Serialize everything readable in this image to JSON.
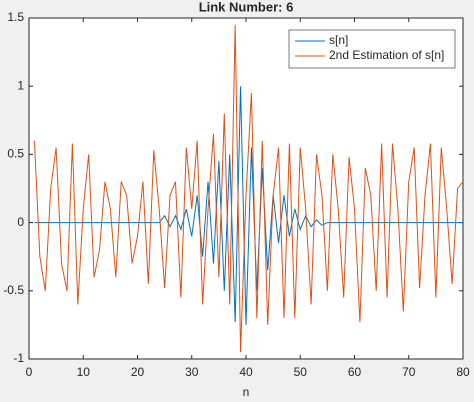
{
  "chart_data": {
    "type": "line",
    "title": "Link Number: 6",
    "xlabel": "n",
    "x": [
      1,
      2,
      3,
      4,
      5,
      6,
      7,
      8,
      9,
      10,
      11,
      12,
      13,
      14,
      15,
      16,
      17,
      18,
      19,
      20,
      21,
      22,
      23,
      24,
      25,
      26,
      27,
      28,
      29,
      30,
      31,
      32,
      33,
      34,
      35,
      36,
      37,
      38,
      39,
      40,
      41,
      42,
      43,
      44,
      45,
      46,
      47,
      48,
      49,
      50,
      51,
      52,
      53,
      54,
      55,
      56,
      57,
      58,
      59,
      60,
      61,
      62,
      63,
      64,
      65,
      66,
      67,
      68,
      69,
      70,
      71,
      72,
      73,
      74,
      75,
      76,
      77,
      78,
      79,
      80
    ],
    "series": [
      {
        "name": "s[n]",
        "color": "#0072bd",
        "values": [
          0,
          0,
          0,
          0,
          0,
          0,
          0,
          0,
          0,
          0,
          0,
          0,
          0,
          0,
          0,
          0,
          0,
          0,
          0,
          0,
          0,
          0,
          0,
          0,
          0.05,
          -0.03,
          0.05,
          -0.05,
          0.1,
          -0.1,
          0.2,
          -0.25,
          0.3,
          -0.3,
          0.45,
          -0.5,
          0.5,
          -0.73,
          1.0,
          -0.75,
          0.55,
          -0.5,
          0.4,
          -0.35,
          0.2,
          -0.15,
          0.2,
          -0.1,
          0.1,
          -0.05,
          0.05,
          -0.03,
          0.02,
          -0.02,
          0,
          0,
          0,
          0,
          0,
          0,
          0,
          0,
          0,
          0,
          0,
          0,
          0,
          0,
          0,
          0,
          0,
          0,
          0,
          0,
          0,
          0,
          0,
          0,
          0,
          0
        ]
      },
      {
        "name": "2nd Estimation of s[n]",
        "color": "#d95319",
        "values": [
          0.6,
          -0.25,
          -0.5,
          0.25,
          0.55,
          -0.3,
          -0.5,
          0.58,
          -0.6,
          0.1,
          0.5,
          -0.4,
          -0.2,
          0.3,
          0.1,
          -0.4,
          0.3,
          0.2,
          -0.3,
          -0.1,
          0.3,
          -0.45,
          0.53,
          0.1,
          -0.48,
          0.2,
          0.3,
          -0.55,
          0.55,
          0.1,
          0.6,
          -0.6,
          0.1,
          0.65,
          -0.4,
          0.8,
          -0.6,
          1.45,
          -0.95,
          0.2,
          0.95,
          -0.7,
          0.6,
          -0.75,
          0.2,
          0.55,
          -0.7,
          0.58,
          -0.7,
          0.55,
          0.1,
          -0.6,
          0.5,
          0.2,
          -0.5,
          0.5,
          0.1,
          -0.55,
          0.48,
          0.1,
          -0.73,
          0.4,
          0.2,
          -0.5,
          0.58,
          -0.55,
          0.58,
          0.1,
          -0.65,
          0.3,
          0.55,
          -0.48,
          0.2,
          0.58,
          -0.55,
          0.55,
          0.1,
          -0.45,
          0.25,
          0.3
        ]
      }
    ],
    "xlim": [
      0,
      80
    ],
    "xticks": [
      0,
      10,
      20,
      30,
      40,
      50,
      60,
      70,
      80
    ],
    "ylim": [
      -1,
      1.5
    ],
    "yticks": [
      -1,
      -0.5,
      0,
      0.5,
      1,
      1.5
    ],
    "legend": "upper right"
  }
}
